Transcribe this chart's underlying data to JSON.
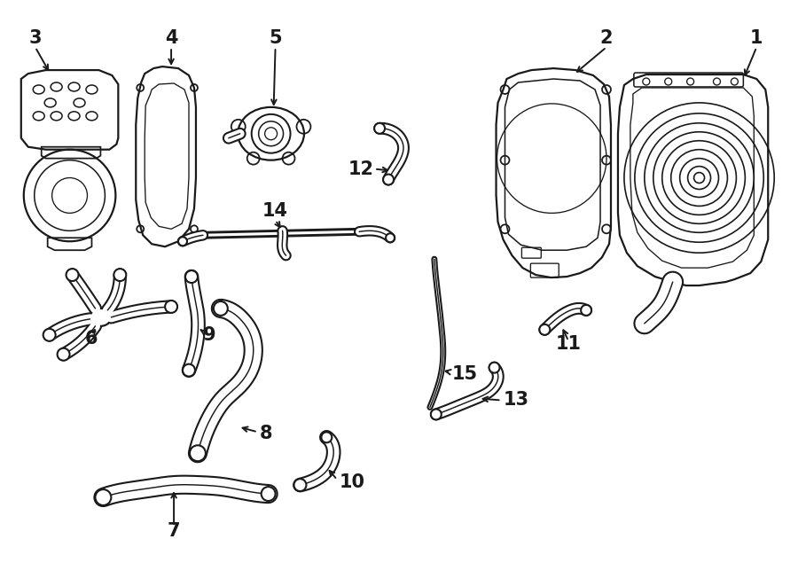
{
  "background_color": "#ffffff",
  "line_color": "#1a1a1a",
  "figsize": [
    9.0,
    6.61
  ],
  "dpi": 100,
  "components": {
    "label_fontsize": 15,
    "arrow_lw": 1.4
  }
}
